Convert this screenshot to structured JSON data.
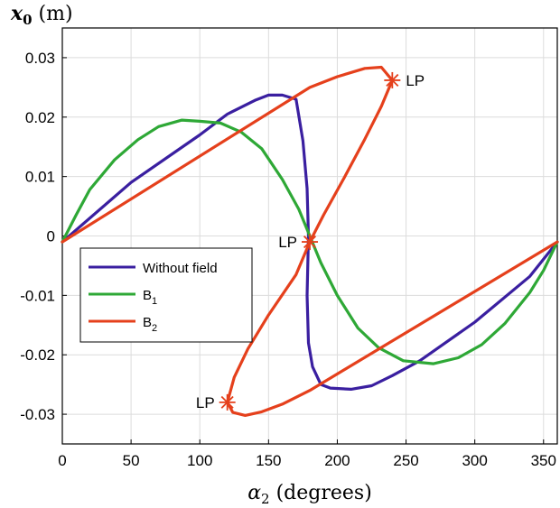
{
  "chart_data": {
    "type": "line",
    "xlabel_var": "α",
    "xlabel_sub": "2",
    "xlabel_unit": " (degrees)",
    "ylabel_var": "x",
    "ylabel_sub": "0",
    "ylabel_unit": " (m)",
    "xlim": [
      0,
      360
    ],
    "ylim": [
      -0.035,
      0.035
    ],
    "xticks": [
      0,
      50,
      100,
      150,
      200,
      250,
      300,
      350
    ],
    "xtick_labels": [
      "0",
      "50",
      "100",
      "150",
      "200",
      "250",
      "300",
      "350"
    ],
    "yticks": [
      0.03,
      0.02,
      0.01,
      0,
      -0.01,
      -0.02,
      -0.03
    ],
    "ytick_labels": [
      "0.03",
      "0.02",
      "0.01",
      "0",
      "-0.01",
      "-0.02",
      "-0.03"
    ],
    "grid": true,
    "legend_position": "center-left",
    "series": [
      {
        "name": "Without field",
        "color": "#3a1fa0",
        "points": [
          [
            0,
            -0.001
          ],
          [
            50,
            0.009
          ],
          [
            100,
            0.017
          ],
          [
            120,
            0.0205
          ],
          [
            140,
            0.0228
          ],
          [
            150,
            0.0237
          ],
          [
            160,
            0.0237
          ],
          [
            170,
            0.023
          ],
          [
            175,
            0.016
          ],
          [
            178,
            0.008
          ],
          [
            179,
            0.0
          ],
          [
            178,
            -0.01
          ],
          [
            179,
            -0.018
          ],
          [
            182,
            -0.022
          ],
          [
            188,
            -0.025
          ],
          [
            195,
            -0.0256
          ],
          [
            210,
            -0.0258
          ],
          [
            225,
            -0.0252
          ],
          [
            240,
            -0.0235
          ],
          [
            260,
            -0.021
          ],
          [
            300,
            -0.0145
          ],
          [
            340,
            -0.0068
          ],
          [
            360,
            -0.001
          ]
        ]
      },
      {
        "name": "B",
        "name_sub": "1",
        "color": "#2ea836",
        "points": [
          [
            0,
            -0.001
          ],
          [
            10,
            0.0035
          ],
          [
            20,
            0.0078
          ],
          [
            38,
            0.0128
          ],
          [
            55,
            0.0162
          ],
          [
            70,
            0.0184
          ],
          [
            87,
            0.0195
          ],
          [
            100,
            0.0193
          ],
          [
            115,
            0.019
          ],
          [
            130,
            0.0175
          ],
          [
            145,
            0.0147
          ],
          [
            160,
            0.0095
          ],
          [
            172,
            0.0045
          ],
          [
            180,
            0.0
          ],
          [
            188,
            -0.0045
          ],
          [
            200,
            -0.01
          ],
          [
            215,
            -0.0155
          ],
          [
            230,
            -0.0188
          ],
          [
            248,
            -0.021
          ],
          [
            270,
            -0.0215
          ],
          [
            288,
            -0.0205
          ],
          [
            305,
            -0.0183
          ],
          [
            322,
            -0.0147
          ],
          [
            340,
            -0.0095
          ],
          [
            350,
            -0.0058
          ],
          [
            360,
            -0.001
          ]
        ]
      },
      {
        "name": "B",
        "name_sub": "2",
        "color": "#e5401c",
        "points": [
          [
            0,
            -0.001
          ],
          [
            180,
            0.025
          ],
          [
            200,
            0.0268
          ],
          [
            220,
            0.0282
          ],
          [
            232,
            0.0284
          ],
          [
            240,
            0.0262
          ],
          [
            232,
            0.0218
          ],
          [
            220,
            0.0163
          ],
          [
            205,
            0.0098
          ],
          [
            190,
            0.0035
          ],
          [
            180,
            -0.001
          ],
          [
            170,
            -0.0065
          ],
          [
            150,
            -0.0133
          ],
          [
            135,
            -0.019
          ],
          [
            125,
            -0.0238
          ],
          [
            120,
            -0.028
          ],
          [
            124,
            -0.0297
          ],
          [
            133,
            -0.0302
          ],
          [
            145,
            -0.0296
          ],
          [
            160,
            -0.0283
          ],
          [
            180,
            -0.026
          ],
          [
            360,
            -0.001
          ]
        ]
      }
    ],
    "markers": [
      {
        "x": 240,
        "y": 0.0262,
        "label": "LP",
        "label_side": "right"
      },
      {
        "x": 180,
        "y": -0.001,
        "label": "LP",
        "label_side": "left"
      },
      {
        "x": 120,
        "y": -0.028,
        "label": "LP",
        "label_side": "left"
      }
    ],
    "marker_color": "#e5401c"
  }
}
